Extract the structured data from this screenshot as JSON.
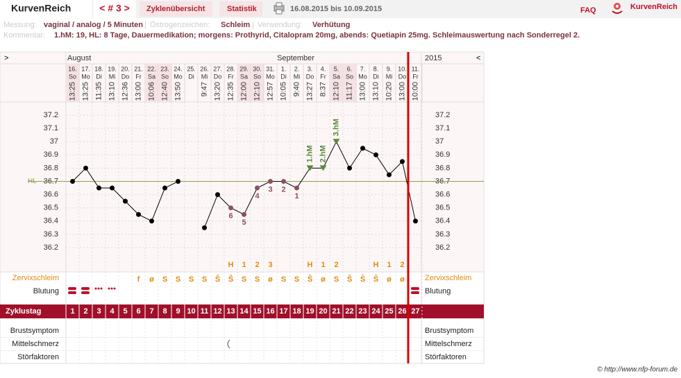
{
  "header": {
    "brand": "KurvenReich",
    "cycle_nav": "< # 3 >",
    "tabs": [
      "Zyklenübersicht",
      "Statistik"
    ],
    "date_range": "16.08.2015 bis 10.09.2015",
    "faq": "FAQ",
    "logo": "KurvenReich"
  },
  "info": {
    "messung_label": "Messung:",
    "messung": "vaginal / analog / 5 Minuten",
    "oestrogen_label": "Östrogenzeichen:",
    "oestrogen": "Schleim",
    "verwendung_label": "Verwendung:",
    "verwendung": "Verhütung",
    "kommentar_label": "Kommentar:",
    "kommentar": "1.hM: 19, HL: 8 Tage,  Dauermedikation; morgens: Prothyrid, Citalopram 20mg, abends: Quetiapin 25mg.  Schleimauswertung nach Sonderregel 2."
  },
  "chart_data": {
    "type": "line",
    "nav_left": ">",
    "nav_right": "<",
    "months": [
      "August",
      "September"
    ],
    "year": "2015",
    "categories": [
      "16.",
      "17.",
      "18.",
      "19.",
      "20.",
      "21.",
      "22.",
      "23.",
      "24.",
      "25.",
      "26.",
      "27.",
      "28.",
      "29.",
      "30.",
      "31.",
      "1.",
      "2.",
      "3.",
      "4.",
      "5.",
      "6.",
      "7.",
      "8.",
      "9.",
      "10.",
      "11."
    ],
    "weekdays": [
      "So",
      "Mo",
      "Di",
      "Mi",
      "Do",
      "Fr",
      "Sa",
      "So",
      "Mo",
      "Di",
      "Mi",
      "Do",
      "Fr",
      "Sa",
      "So",
      "Mo",
      "Di",
      "Mi",
      "Do",
      "Fr",
      "Sa",
      "So",
      "Mo",
      "Di",
      "Mi",
      "Do",
      "Fr"
    ],
    "times": [
      "13:25",
      "13:25",
      "11:35",
      "13:10",
      "12:36",
      "13:00",
      "10:06",
      "12:40",
      "13:50",
      null,
      "9:47",
      "13:20",
      "12:35",
      "12:00",
      "12:10",
      "12:57",
      "10:05",
      "9:40",
      "13:27",
      "8:37",
      "12:10",
      "11:17",
      "13:00",
      "13:10",
      "10:20",
      "13:00",
      "10:00"
    ],
    "values": [
      36.7,
      36.8,
      36.65,
      36.65,
      36.55,
      36.45,
      36.4,
      36.65,
      36.7,
      null,
      36.35,
      36.6,
      36.5,
      36.45,
      36.65,
      36.7,
      36.7,
      36.65,
      36.8,
      36.8,
      37.0,
      36.8,
      36.95,
      36.9,
      36.75,
      36.85,
      36.4
    ],
    "color": "#000000",
    "ylim": [
      36.2,
      37.2
    ],
    "yticks": [
      36.2,
      36.3,
      36.4,
      36.5,
      36.6,
      36.7,
      36.8,
      36.9,
      37,
      37.1,
      37.2
    ],
    "grid": true,
    "hl": 36.7,
    "hl_label": "HL",
    "hl_color": "#8aa04a",
    "count_labels": [
      null,
      null,
      null,
      null,
      null,
      null,
      null,
      null,
      null,
      null,
      null,
      null,
      6,
      5,
      4,
      3,
      2,
      1,
      null,
      null,
      null,
      null,
      null,
      null,
      null,
      null,
      null
    ],
    "count_color": "#8a5060",
    "hm_labels": [
      null,
      null,
      null,
      null,
      null,
      null,
      null,
      null,
      null,
      null,
      null,
      null,
      null,
      null,
      null,
      null,
      null,
      null,
      "1.hM",
      "2.hM",
      "3.hM",
      null,
      null,
      null,
      null,
      null,
      null
    ],
    "hm_color": "#5a8a3a",
    "mucus_peak": [
      null,
      null,
      null,
      null,
      null,
      null,
      null,
      null,
      null,
      null,
      null,
      null,
      "H",
      "1",
      "2",
      "3",
      null,
      null,
      "H",
      "1",
      "2",
      null,
      null,
      "H",
      "1",
      "2",
      null
    ],
    "mucus": [
      null,
      null,
      null,
      null,
      null,
      "f",
      "ø",
      "S",
      "S",
      "S",
      "S",
      "Ŝ",
      "Ŝ",
      "S",
      "S",
      "ø",
      "S",
      "S",
      "Ŝ",
      "ø",
      "S",
      "Ŝ",
      "Ŝ",
      "Ŝ",
      "ø",
      "ø",
      null
    ],
    "mucus_color": "#e08a10",
    "cycle_days": [
      1,
      2,
      3,
      4,
      5,
      6,
      7,
      8,
      9,
      10,
      11,
      12,
      13,
      14,
      15,
      16,
      17,
      18,
      19,
      20,
      21,
      22,
      23,
      24,
      25,
      26,
      27
    ],
    "row_labels": {
      "mucus": "Zervixschleim",
      "bleeding": "Blutung",
      "cycle_day": "Zyklustag",
      "breast": "Brustsymptom",
      "mittelschmerz": "Mittelschmerz",
      "disturb": "Störfaktoren"
    }
  },
  "footer": "© http://www.nfp-forum.de"
}
